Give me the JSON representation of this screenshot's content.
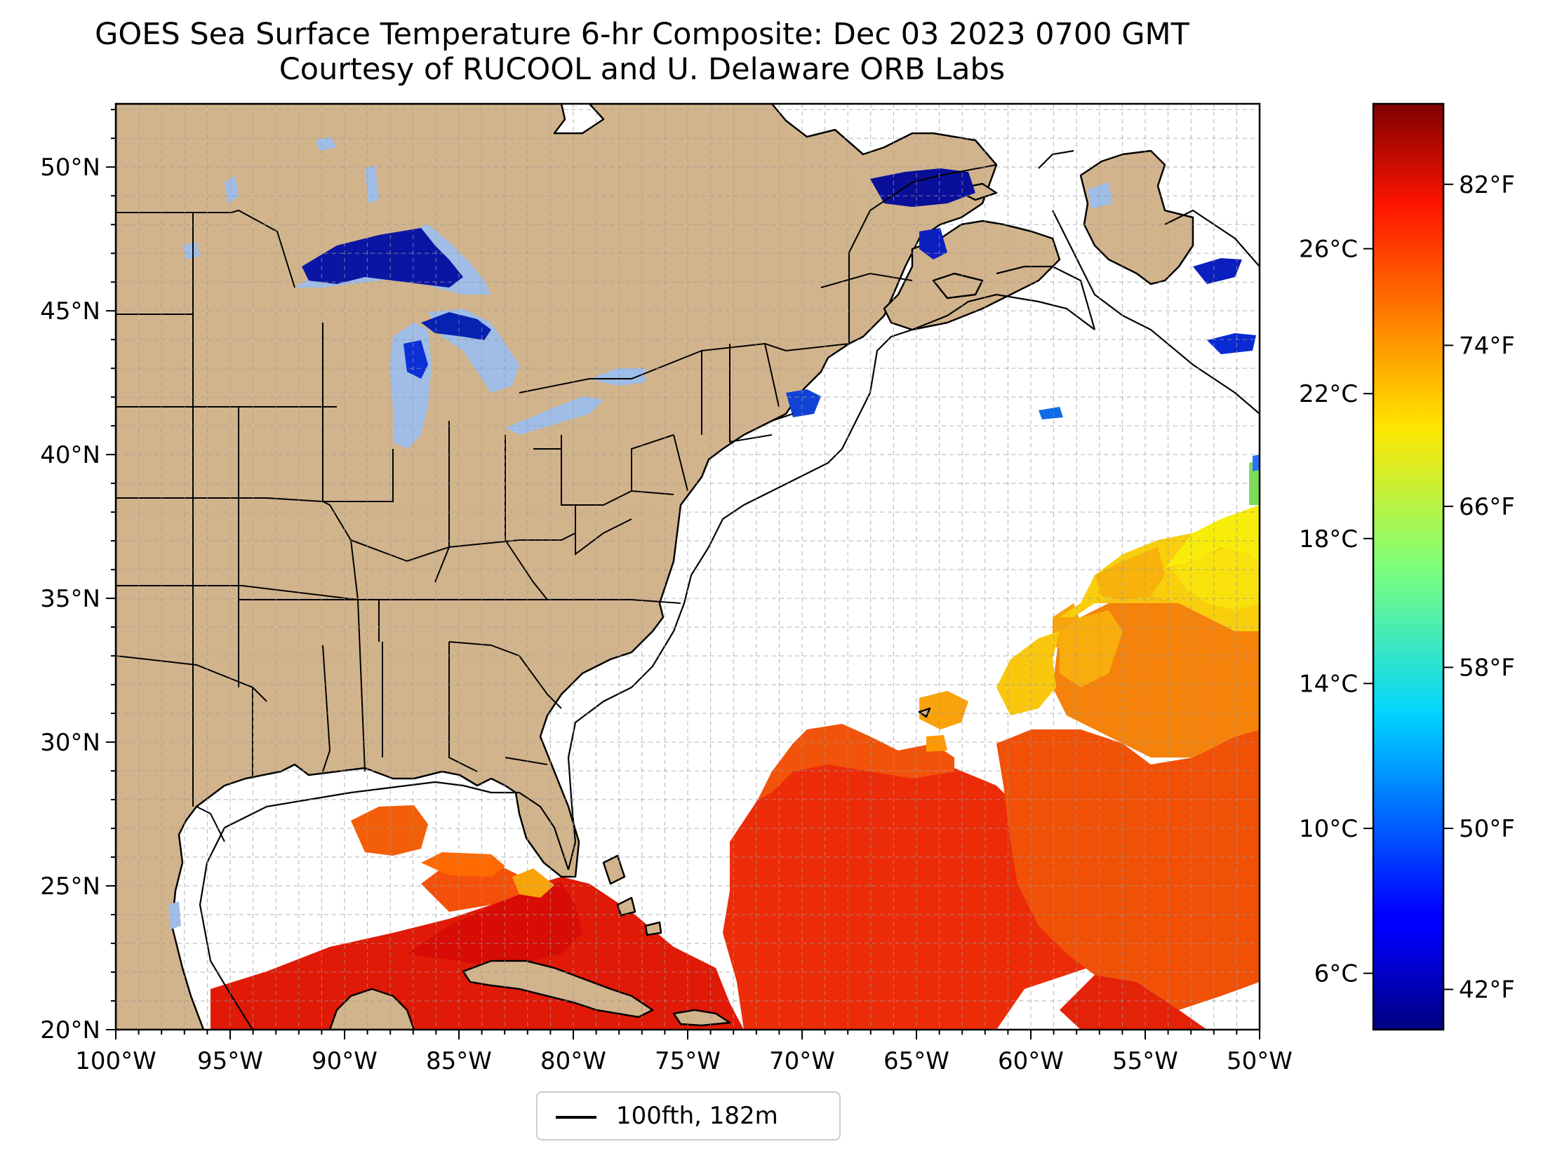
{
  "title": {
    "line1": "GOES Sea Surface Temperature 6-hr Composite: Dec 03 2023 0700 GMT",
    "line2": "Courtesy of RUCOOL and U. Delaware ORB Labs"
  },
  "map": {
    "lon_range": [
      -100,
      -50
    ],
    "lat_range": [
      20,
      52.2
    ],
    "grid": true,
    "land_color": "#d2b48c",
    "lake_color": "#9fbde6",
    "ocean_color": "#ffffff",
    "lon_ticks": [
      "100°W",
      "95°W",
      "90°W",
      "85°W",
      "80°W",
      "75°W",
      "70°W",
      "65°W",
      "60°W",
      "55°W",
      "50°W"
    ],
    "lat_ticks": [
      "20°N",
      "25°N",
      "30°N",
      "35°N",
      "40°N",
      "45°N",
      "50°N"
    ]
  },
  "colorbar": {
    "colormap": "jet",
    "range_f": [
      40,
      86
    ],
    "celsius_ticks": [
      "6°C",
      "10°C",
      "14°C",
      "18°C",
      "22°C",
      "26°C"
    ],
    "fahrenheit_ticks": [
      "42°F",
      "50°F",
      "58°F",
      "66°F",
      "74°F",
      "82°F"
    ]
  },
  "legend": {
    "placement": "bottom-center",
    "entries": [
      {
        "label": "100fth, 182m",
        "color": "#000000"
      }
    ]
  }
}
